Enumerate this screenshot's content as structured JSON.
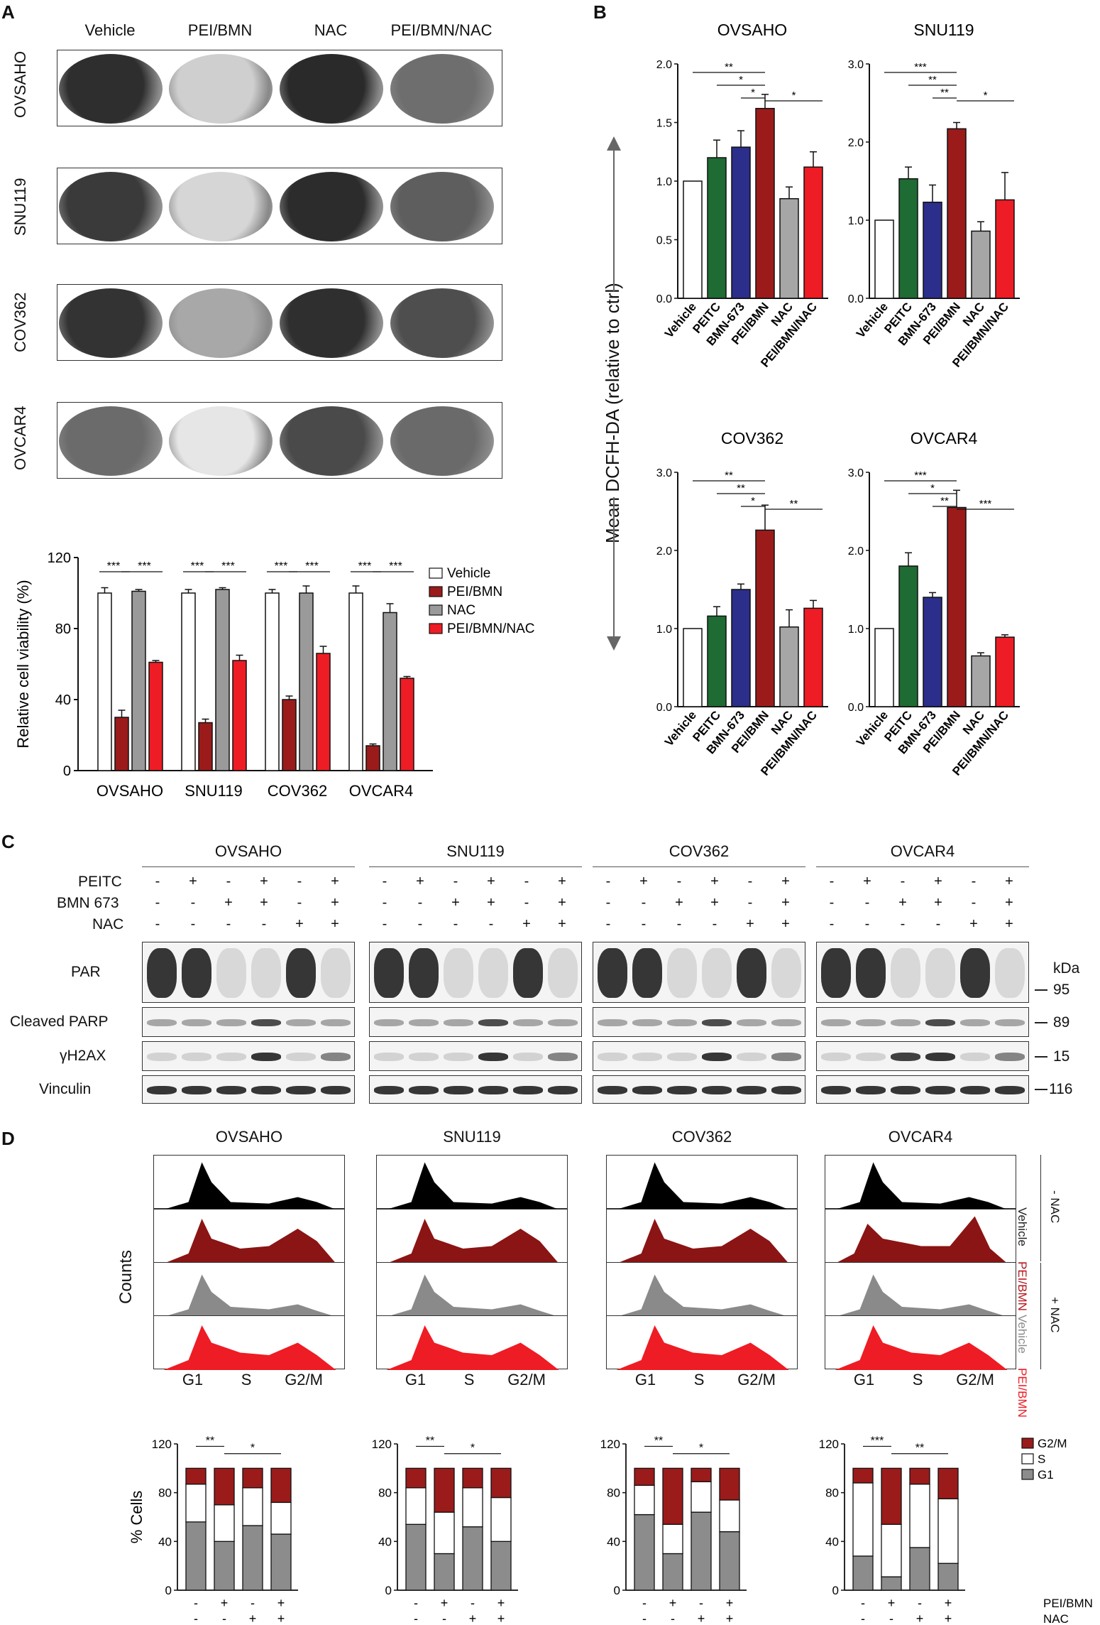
{
  "panels": {
    "A": "A",
    "B": "B",
    "C": "C",
    "D": "D"
  },
  "panelA": {
    "columns": [
      "Vehicle",
      "PEI/BMN",
      "NAC",
      "PEI/BMN/NAC"
    ],
    "rows": [
      "OVSAHO",
      "SNU119",
      "COV362",
      "OVCAR4"
    ]
  },
  "chart_data": [
    {
      "id": "A-viability",
      "type": "bar",
      "categories": [
        "OVSAHO",
        "SNU119",
        "COV362",
        "OVCAR4"
      ],
      "ylabel": "Relative cell viability (%)",
      "ylim": [
        0,
        120
      ],
      "yticks": [
        "0",
        "40",
        "80",
        "120"
      ],
      "series": [
        {
          "name": "Vehicle",
          "color": "#ffffff",
          "values": [
            100,
            100,
            100,
            100
          ],
          "err": [
            3,
            2,
            2,
            4
          ]
        },
        {
          "name": "PEI/BMN",
          "color": "#9b1b1b",
          "values": [
            30,
            27,
            40,
            14
          ],
          "err": [
            4,
            2,
            2,
            1
          ]
        },
        {
          "name": "NAC",
          "color": "#9a9a9a",
          "values": [
            101,
            102,
            100,
            89
          ],
          "err": [
            1,
            1,
            4,
            5
          ]
        },
        {
          "name": "PEI/BMN/NAC",
          "color": "#ee1c24",
          "values": [
            61,
            62,
            66,
            52
          ],
          "err": [
            1,
            3,
            4,
            1
          ]
        }
      ],
      "significance": [
        "***",
        "***",
        "***",
        "***",
        "***",
        "***",
        "***",
        "***"
      ]
    },
    {
      "id": "B-OVSAHO",
      "type": "bar",
      "title": "OVSAHO",
      "categories": [
        "Vehicle",
        "PEITC",
        "BMN-673",
        "PEI/BMN",
        "NAC",
        "PEI/BMN/NAC"
      ],
      "values": [
        1.0,
        1.2,
        1.29,
        1.62,
        0.85,
        1.12
      ],
      "err": [
        0,
        0.15,
        0.14,
        0.12,
        0.1,
        0.13
      ],
      "ylim": [
        0,
        2.0
      ],
      "yticks": [
        "0.0",
        "0.5",
        "1.0",
        "1.5",
        "2.0"
      ],
      "significance": [
        "**",
        "*",
        "*",
        "*"
      ]
    },
    {
      "id": "B-SNU119",
      "type": "bar",
      "title": "SNU119",
      "categories": [
        "Vehicle",
        "PEITC",
        "BMN-673",
        "PEI/BMN",
        "NAC",
        "PEI/BMN/NAC"
      ],
      "values": [
        1.0,
        1.53,
        1.23,
        2.17,
        0.86,
        1.26
      ],
      "err": [
        0,
        0.15,
        0.22,
        0.08,
        0.12,
        0.35
      ],
      "ylim": [
        0,
        3.0
      ],
      "yticks": [
        "0.0",
        "1.0",
        "2.0",
        "3.0"
      ],
      "significance": [
        "***",
        "**",
        "**",
        "*"
      ]
    },
    {
      "id": "B-COV362",
      "type": "bar",
      "title": "COV362",
      "categories": [
        "Vehicle",
        "PEITC",
        "BMN-673",
        "PEI/BMN",
        "NAC",
        "PEI/BMN/NAC"
      ],
      "values": [
        1.0,
        1.16,
        1.5,
        2.26,
        1.02,
        1.26
      ],
      "err": [
        0,
        0.12,
        0.07,
        0.32,
        0.22,
        0.1
      ],
      "ylim": [
        0,
        3.0
      ],
      "yticks": [
        "0.0",
        "1.0",
        "2.0",
        "3.0"
      ],
      "significance": [
        "**",
        "**",
        "*",
        "**"
      ]
    },
    {
      "id": "B-OVCAR4",
      "type": "bar",
      "title": "OVCAR4",
      "categories": [
        "Vehicle",
        "PEITC",
        "BMN-673",
        "PEI/BMN",
        "NAC",
        "PEI/BMN/NAC"
      ],
      "values": [
        1.0,
        1.8,
        1.4,
        2.55,
        0.65,
        0.89
      ],
      "err": [
        0,
        0.17,
        0.06,
        0.22,
        0.04,
        0.03
      ],
      "ylim": [
        0,
        3.0
      ],
      "yticks": [
        "0.0",
        "1.0",
        "2.0",
        "3.0"
      ],
      "significance": [
        "***",
        "*",
        "**",
        "***"
      ]
    },
    {
      "id": "D-OVSAHO",
      "type": "bar",
      "stacked": true,
      "series": [
        {
          "name": "G1",
          "color": "#8c8c8c",
          "values": [
            56,
            40,
            53,
            46
          ]
        },
        {
          "name": "S",
          "color": "#ffffff",
          "values": [
            31,
            30,
            31,
            26
          ]
        },
        {
          "name": "G2/M",
          "color": "#9b1b1b",
          "values": [
            13,
            30,
            16,
            28
          ]
        }
      ],
      "ylim": [
        0,
        120
      ],
      "yticks": [
        "0",
        "40",
        "80",
        "120"
      ],
      "significance": [
        "**",
        "*"
      ]
    },
    {
      "id": "D-SNU119",
      "type": "bar",
      "stacked": true,
      "series": [
        {
          "name": "G1",
          "color": "#8c8c8c",
          "values": [
            54,
            30,
            52,
            40
          ]
        },
        {
          "name": "S",
          "color": "#ffffff",
          "values": [
            30,
            34,
            32,
            36
          ]
        },
        {
          "name": "G2/M",
          "color": "#9b1b1b",
          "values": [
            16,
            36,
            16,
            24
          ]
        }
      ],
      "ylim": [
        0,
        120
      ],
      "yticks": [
        "0",
        "40",
        "80",
        "120"
      ],
      "significance": [
        "**",
        "*"
      ]
    },
    {
      "id": "D-COV362",
      "type": "bar",
      "stacked": true,
      "series": [
        {
          "name": "G1",
          "color": "#8c8c8c",
          "values": [
            62,
            30,
            64,
            48
          ]
        },
        {
          "name": "S",
          "color": "#ffffff",
          "values": [
            24,
            24,
            25,
            26
          ]
        },
        {
          "name": "G2/M",
          "color": "#9b1b1b",
          "values": [
            14,
            46,
            11,
            26
          ]
        }
      ],
      "ylim": [
        0,
        120
      ],
      "yticks": [
        "0",
        "40",
        "80",
        "120"
      ],
      "significance": [
        "**",
        "*"
      ]
    },
    {
      "id": "D-OVCAR4",
      "type": "bar",
      "stacked": true,
      "series": [
        {
          "name": "G1",
          "color": "#8c8c8c",
          "values": [
            28,
            11,
            35,
            22
          ]
        },
        {
          "name": "S",
          "color": "#ffffff",
          "values": [
            60,
            43,
            52,
            53
          ]
        },
        {
          "name": "G2/M",
          "color": "#9b1b1b",
          "values": [
            12,
            46,
            13,
            25
          ]
        }
      ],
      "ylim": [
        0,
        120
      ],
      "yticks": [
        "0",
        "40",
        "80",
        "120"
      ],
      "significance": [
        "***",
        "**"
      ]
    }
  ],
  "panelB": {
    "ylabel": "Mean DCFH-DA (relative to ctrl)",
    "categories": [
      "Vehicle",
      "PEITC",
      "BMN-673",
      "PEI/BMN",
      "NAC",
      "PEI/BMN/NAC"
    ],
    "colors": [
      "#ffffff",
      "#1e6b33",
      "#2b2e8a",
      "#9b1b1b",
      "#a6a6a6",
      "#ee1c24"
    ]
  },
  "panelC": {
    "cells": [
      "OVSAHO",
      "SNU119",
      "COV362",
      "OVCAR4"
    ],
    "treatments": [
      {
        "label": "PEITC",
        "signs": [
          "-",
          "+",
          "-",
          "+",
          "-",
          "+"
        ]
      },
      {
        "label": "BMN 673",
        "signs": [
          "-",
          "-",
          "+",
          "+",
          "-",
          "+"
        ]
      },
      {
        "label": "NAC",
        "signs": [
          "-",
          "-",
          "-",
          "-",
          "+",
          "+"
        ]
      }
    ],
    "blots": [
      "PAR",
      "Cleaved PARP",
      "γH2AX",
      "Vinculin"
    ],
    "kda_title": "kDa",
    "markers": [
      "95",
      "89",
      "15",
      "116"
    ]
  },
  "panelD": {
    "cells": [
      "OVSAHO",
      "SNU119",
      "COV362",
      "OVCAR4"
    ],
    "ylabel_hist": "Counts",
    "phases": [
      "G1",
      "S",
      "G2/M"
    ],
    "side_labels": [
      {
        "text": "Vehicle",
        "color": "#222222"
      },
      {
        "text": "PEI/BMN",
        "color": "#b5161c"
      },
      {
        "text": "Vehicle",
        "color": "#8a8a8a"
      },
      {
        "text": "PEI/BMN",
        "color": "#ee1c24"
      }
    ],
    "nac_minus": "- NAC",
    "nac_plus": "+ NAC",
    "hist_colors": [
      "#000000",
      "#8b1414",
      "#8a8a8a",
      "#ee1c24"
    ],
    "bar_ylabel": "% Cells",
    "legend": [
      "G2/M",
      "S",
      "G1"
    ],
    "pei_row": {
      "label": "PEI/BMN",
      "signs": [
        "-",
        "+",
        "-",
        "+"
      ]
    },
    "nac_row": {
      "label": "NAC",
      "signs": [
        "-",
        "-",
        "+",
        "+"
      ]
    }
  }
}
